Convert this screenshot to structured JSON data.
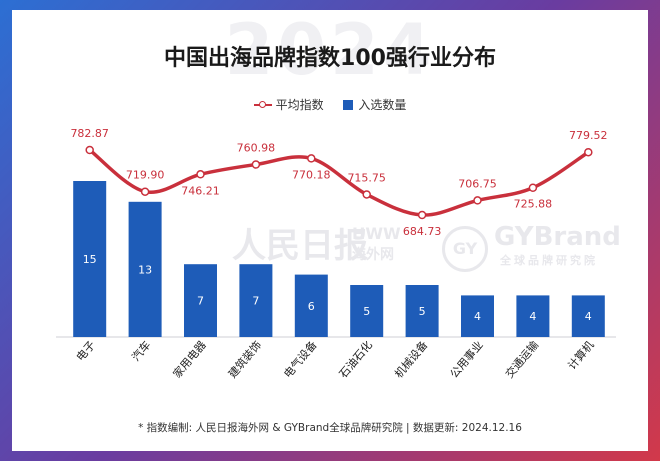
{
  "header": {
    "watermark_year": "2024",
    "title": "中国出海品牌指数100强行业分布"
  },
  "legend": {
    "line_label": "平均指数",
    "bar_label": "入选数量"
  },
  "watermarks": {
    "people_daily": "人民日报",
    "hww_en": "HWW",
    "hww_cn": "海外网",
    "gy_badge": "GY",
    "gybrand_en": "GYBrand",
    "gybrand_cn": "全球品牌研究院"
  },
  "footer": {
    "note": "* 指数编制: 人民日报海外网 & GYBrand全球品牌研究院 | 数据更新: 2024.12.16"
  },
  "colors": {
    "bar": "#1e5cb8",
    "line": "#c9303c",
    "label_line": "#c9303c",
    "label_bar": "#ffffff"
  },
  "chart_data": {
    "type": "bar",
    "categories": [
      "电子",
      "汽车",
      "家用电器",
      "建筑装饰",
      "电气设备",
      "石油石化",
      "机械设备",
      "公用事业",
      "交通运输",
      "计算机"
    ],
    "series": [
      {
        "name": "入选数量",
        "type": "bar",
        "values": [
          15,
          13,
          7,
          7,
          6,
          5,
          5,
          4,
          4,
          4
        ]
      },
      {
        "name": "平均指数",
        "type": "line",
        "values": [
          782.87,
          719.9,
          746.21,
          760.98,
          770.18,
          715.75,
          684.73,
          706.75,
          725.88,
          779.52
        ]
      }
    ],
    "title": "中国出海品牌指数100强行业分布",
    "legend_position": "top-center"
  }
}
